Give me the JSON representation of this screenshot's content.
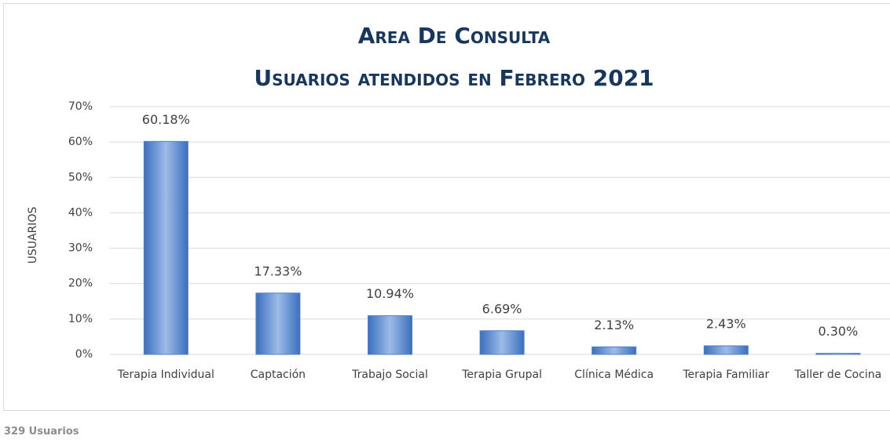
{
  "chart_data": {
    "type": "bar",
    "title": "Area De Consulta",
    "subtitle": "Usuarios atendidos en Febrero 2021",
    "y_label": "USUARIOS",
    "footnote": "329 Usuarios",
    "categories": [
      "Terapia Individual",
      "Captación",
      "Trabajo Social",
      "Terapia Grupal",
      "Clínica Médica",
      "Terapia Familiar",
      "Taller de Cocina"
    ],
    "values": [
      60.18,
      17.33,
      10.94,
      6.69,
      2.13,
      2.43,
      0.3
    ],
    "value_labels": [
      "60.18%",
      "17.33%",
      "10.94%",
      "6.69%",
      "2.13%",
      "2.43%",
      "0.30%"
    ],
    "color": "#4f81c9",
    "ylim": [
      0,
      70
    ],
    "yticks": [
      {
        "value": 0,
        "label": "0%"
      },
      {
        "value": 10,
        "label": "10%"
      },
      {
        "value": 20,
        "label": "20%"
      },
      {
        "value": 30,
        "label": "30%"
      },
      {
        "value": 40,
        "label": "40%"
      },
      {
        "value": 50,
        "label": "50%"
      },
      {
        "value": 60,
        "label": "60%"
      },
      {
        "value": 70,
        "label": "70%"
      }
    ],
    "grid": true
  }
}
